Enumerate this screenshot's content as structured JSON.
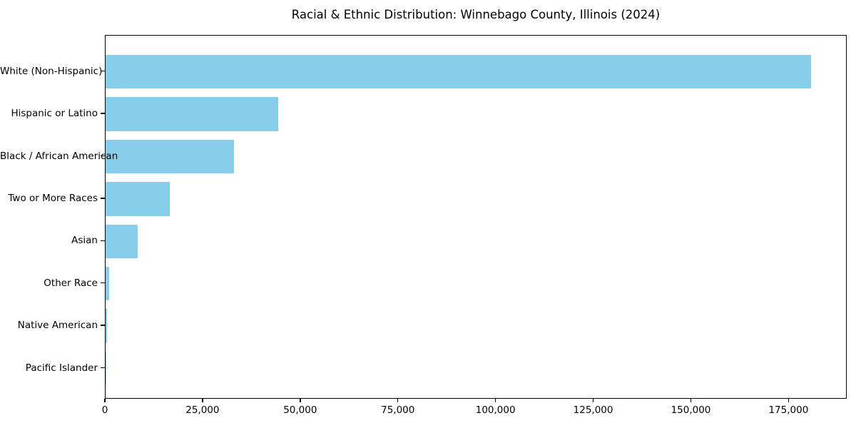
{
  "chart_data": {
    "type": "bar",
    "orientation": "horizontal",
    "title": "Racial & Ethnic Distribution: Winnebago County, Illinois (2024)",
    "categories": [
      "White (Non-Hispanic)",
      "Hispanic or Latino",
      "Black / African American",
      "Two or More Races",
      "Asian",
      "Other Race",
      "Native American",
      "Pacific Islander"
    ],
    "values": [
      180500,
      44100,
      32900,
      16400,
      8200,
      900,
      300,
      100
    ],
    "xlabel": "",
    "ylabel": "",
    "xlim": [
      0,
      189900
    ],
    "x_ticks": [
      0,
      25000,
      50000,
      75000,
      100000,
      125000,
      150000,
      175000
    ],
    "x_tick_labels": [
      "0",
      "25,000",
      "50,000",
      "75,000",
      "100,000",
      "125,000",
      "150,000",
      "175,000"
    ],
    "grid": false,
    "legend": "none",
    "bar_color": "#87CEEB"
  },
  "colors": {
    "bar": "#87CEEB",
    "axis": "#000000",
    "text": "#000000",
    "background": "#ffffff"
  }
}
